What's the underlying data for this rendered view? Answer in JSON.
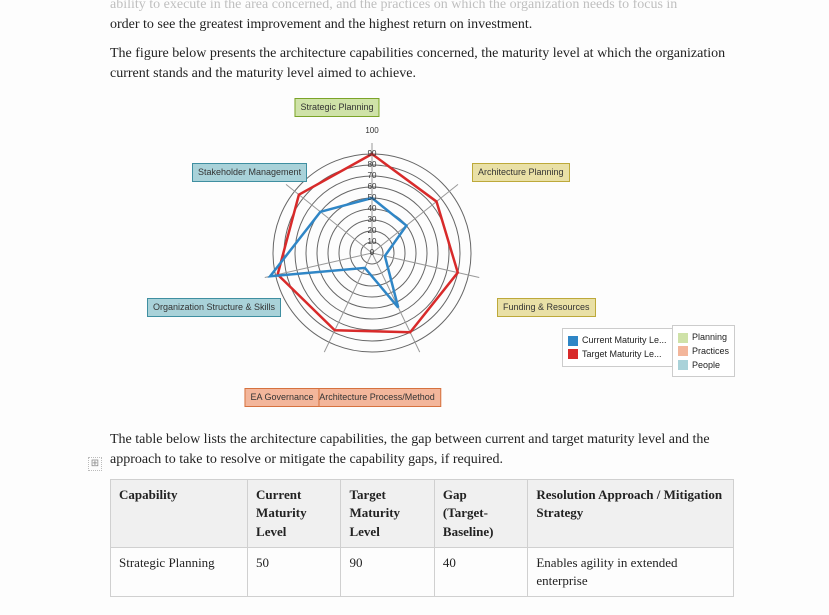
{
  "paragraphs": {
    "top_faded": "ability to execute in the area concerned, and the practices on which the organization needs to focus in",
    "top_continued": "order to see the greatest improvement and the highest return on investment.",
    "fig_intro": "The figure below presents the architecture capabilities concerned, the maturity level at which the organization current stands and the maturity level aimed to achieve.",
    "table_intro": "The table below lists the architecture capabilities, the gap between current and target maturity level and the approach to take to resolve or mitigate the capability gaps, if required."
  },
  "radar": {
    "axes": [
      {
        "label": "Strategic Planning",
        "color_bg": "#cfe2a8",
        "color_border": "#7ba428"
      },
      {
        "label": "Architecture Planning",
        "color_bg": "#e9e0a6",
        "color_border": "#bda93a"
      },
      {
        "label": "Funding & Resources",
        "color_bg": "#e9e0a6",
        "color_border": "#bda93a"
      },
      {
        "label": "Architecture Process/Method",
        "color_bg": "#f3b69b",
        "color_border": "#d6723f"
      },
      {
        "label": "EA Governance",
        "color_bg": "#f3b69b",
        "color_border": "#d6723f"
      },
      {
        "label": "Organization Structure & Skills",
        "color_bg": "#a9d2d9",
        "color_border": "#3f8fa1"
      },
      {
        "label": "Stakeholder Management",
        "color_bg": "#a9d2d9",
        "color_border": "#3f8fa1"
      }
    ],
    "ticks": [
      0,
      10,
      20,
      30,
      40,
      50,
      60,
      70,
      80,
      90
    ],
    "outer_label": "100",
    "ring_color": "#666666",
    "axis_line_color": "#999999",
    "series": {
      "current": {
        "label": "Current Maturity Le...",
        "color": "#2f86c6",
        "values": [
          50,
          40,
          12,
          55,
          15,
          95,
          60
        ]
      },
      "target": {
        "label": "Target Maturity Le...",
        "color": "#d82a2a",
        "values": [
          90,
          75,
          80,
          80,
          78,
          88,
          85
        ]
      }
    },
    "legend2": [
      {
        "label": "Planning",
        "color": "#cfe2a8"
      },
      {
        "label": "Practices",
        "color": "#f3b69b"
      },
      {
        "label": "People",
        "color": "#a9d2d9"
      }
    ]
  },
  "table": {
    "headers": {
      "c1": "Capability",
      "c2": "Current Maturity Level",
      "c3": "Target Maturity Level",
      "c4a": "Gap",
      "c4b": "(Target-Baseline)",
      "c5": "Resolution Approach / Mitigation Strategy"
    },
    "row1": {
      "c1": "Strategic Planning",
      "c2": "50",
      "c3": "90",
      "c4": "40",
      "c5": "Enables agility in extended enterprise"
    }
  },
  "anchor_glyph": "⊞"
}
